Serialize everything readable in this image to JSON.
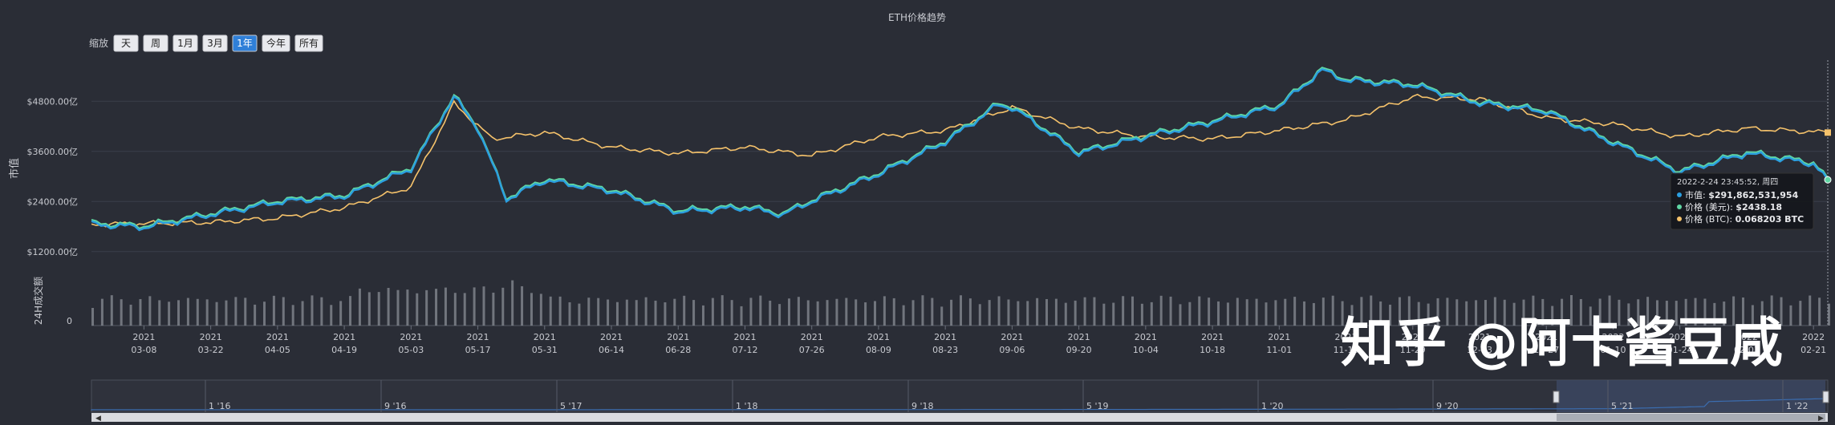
{
  "title": "ETH价格趋势",
  "zoom": {
    "label": "缩放",
    "buttons": [
      "天",
      "周",
      "1月",
      "3月",
      "1年",
      "今年",
      "所有"
    ],
    "active": "1年"
  },
  "colors": {
    "bg": "#2a2d36",
    "grid": "#3a3e4a",
    "market_cap": "#2b9fe0",
    "price_usd": "#5fd6a3",
    "price_btc": "#f5c26b",
    "volume": "#8a8d95",
    "accent": "#2f7fd8"
  },
  "axis": {
    "y_title": "市值",
    "y_ticks": [
      "$4800.00亿",
      "$3600.00亿",
      "$2400.00亿",
      "$1200.00亿"
    ],
    "volume_title": "24H成交额",
    "volume_zero": "0",
    "x_ticks": [
      [
        "2021",
        "03-08"
      ],
      [
        "2021",
        "03-22"
      ],
      [
        "2021",
        "04-05"
      ],
      [
        "2021",
        "04-19"
      ],
      [
        "2021",
        "05-03"
      ],
      [
        "2021",
        "05-17"
      ],
      [
        "2021",
        "05-31"
      ],
      [
        "2021",
        "06-14"
      ],
      [
        "2021",
        "06-28"
      ],
      [
        "2021",
        "07-12"
      ],
      [
        "2021",
        "07-26"
      ],
      [
        "2021",
        "08-09"
      ],
      [
        "2021",
        "08-23"
      ],
      [
        "2021",
        "09-06"
      ],
      [
        "2021",
        "09-20"
      ],
      [
        "2021",
        "10-04"
      ],
      [
        "2021",
        "10-18"
      ],
      [
        "2021",
        "11-01"
      ],
      [
        "2021",
        "11-15"
      ],
      [
        "2021",
        "11-29"
      ],
      [
        "2021",
        "12-13"
      ],
      [
        "2021",
        "12-27"
      ],
      [
        "2022",
        "01-10"
      ],
      [
        "2022",
        "01-24"
      ],
      [
        "2022",
        "02-07"
      ],
      [
        "2022",
        "02-21"
      ]
    ]
  },
  "tooltip": {
    "date": "2022-2-24 23:45:52, 周四",
    "rows": [
      {
        "label": "市值:",
        "value": "$291,862,531,954"
      },
      {
        "label": "价格 (美元):",
        "value": "$2438.18"
      },
      {
        "label": "价格 (BTC):",
        "value": "0.068203 BTC"
      }
    ]
  },
  "navigator": {
    "labels": [
      "1 '16",
      "9 '16",
      "5 '17",
      "1 '18",
      "9 '18",
      "5 '19",
      "1 '20",
      "9 '20",
      "5 '21",
      "1 '22"
    ]
  },
  "watermark": "知乎 @阿卡酱豆咸",
  "chart_data": {
    "type": "line",
    "title": "ETH价格趋势",
    "xlabel": "",
    "ylabel": "市值",
    "x_range": [
      "2021-02-25",
      "2022-02-24"
    ],
    "ylim_market_cap_usd_100m": [
      600,
      5400
    ],
    "series": [
      {
        "name": "市值",
        "unit": "亿美元",
        "x": [
          "2021-02-25",
          "2021-03-08",
          "2021-03-22",
          "2021-04-05",
          "2021-04-19",
          "2021-05-03",
          "2021-05-12",
          "2021-05-17",
          "2021-05-23",
          "2021-05-31",
          "2021-06-14",
          "2021-06-28",
          "2021-07-12",
          "2021-07-20",
          "2021-07-26",
          "2021-08-09",
          "2021-08-23",
          "2021-09-03",
          "2021-09-06",
          "2021-09-20",
          "2021-10-04",
          "2021-10-18",
          "2021-11-01",
          "2021-11-10",
          "2021-11-15",
          "2021-11-29",
          "2021-12-13",
          "2021-12-27",
          "2022-01-10",
          "2022-01-24",
          "2022-02-07",
          "2022-02-21",
          "2022-02-24"
        ],
        "values": [
          1850,
          1780,
          2080,
          2380,
          2520,
          3180,
          4900,
          4150,
          2450,
          2900,
          2650,
          2150,
          2250,
          2080,
          2400,
          3050,
          3820,
          4700,
          4650,
          3550,
          3950,
          4300,
          4680,
          5540,
          5300,
          5180,
          4750,
          4550,
          3800,
          3100,
          3550,
          3300,
          2919
        ]
      },
      {
        "name": "价格 (美元)",
        "unit": "美元",
        "x": [
          "2022-02-24"
        ],
        "values": [
          2438.18
        ]
      },
      {
        "name": "价格 (BTC)",
        "unit": "BTC",
        "x": [
          "2022-02-24"
        ],
        "values": [
          0.068203
        ]
      }
    ],
    "btc_price_line_as_plotted_100m_equiv": {
      "x": [
        "2021-02-25",
        "2021-03-22",
        "2021-04-05",
        "2021-04-19",
        "2021-05-03",
        "2021-05-12",
        "2021-05-20",
        "2021-05-31",
        "2021-06-14",
        "2021-06-28",
        "2021-07-12",
        "2021-07-26",
        "2021-08-09",
        "2021-08-23",
        "2021-09-06",
        "2021-09-20",
        "2021-10-04",
        "2021-10-18",
        "2021-11-01",
        "2021-11-15",
        "2021-11-29",
        "2021-12-13",
        "2021-12-27",
        "2022-01-10",
        "2022-01-24",
        "2022-02-07",
        "2022-02-24"
      ],
      "values": [
        1850,
        1900,
        2000,
        2250,
        2750,
        4750,
        3900,
        4050,
        3700,
        3550,
        3700,
        3500,
        3950,
        4100,
        4650,
        4150,
        3950,
        3900,
        4100,
        4350,
        4900,
        4850,
        4400,
        4250,
        3950,
        4150,
        4050
      ]
    },
    "volume_relative": "daily bars, roughly constant with small peaks in May 2021"
  }
}
